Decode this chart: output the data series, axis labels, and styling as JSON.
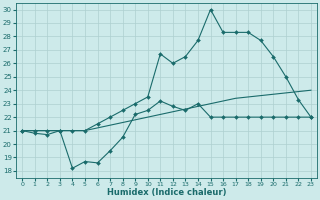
{
  "xlabel": "Humidex (Indice chaleur)",
  "background_color": "#cdeaea",
  "grid_color": "#aed0d0",
  "line_color": "#1a6b6b",
  "x_ticks": [
    0,
    1,
    2,
    3,
    4,
    5,
    6,
    7,
    8,
    9,
    10,
    11,
    12,
    13,
    14,
    15,
    16,
    17,
    18,
    19,
    20,
    21,
    22,
    23
  ],
  "y_ticks": [
    18,
    19,
    20,
    21,
    22,
    23,
    24,
    25,
    26,
    27,
    28,
    29,
    30
  ],
  "ylim": [
    17.5,
    30.5
  ],
  "xlim": [
    -0.5,
    23.5
  ],
  "series1_x": [
    0,
    1,
    2,
    3,
    4,
    5,
    6,
    7,
    8,
    9,
    10,
    11,
    12,
    13,
    14,
    15,
    16,
    17,
    18,
    19,
    20,
    21,
    22,
    23
  ],
  "series1_y": [
    21.0,
    20.8,
    20.7,
    21.0,
    18.2,
    18.7,
    18.6,
    19.5,
    20.5,
    22.2,
    22.5,
    23.2,
    22.8,
    22.5,
    23.0,
    22.0,
    22.0,
    22.0,
    22.0,
    22.0,
    22.0,
    22.0,
    22.0,
    22.0
  ],
  "series2_x": [
    0,
    1,
    2,
    3,
    4,
    5,
    6,
    7,
    8,
    9,
    10,
    11,
    12,
    13,
    14,
    15,
    16,
    17,
    18,
    19,
    20,
    21,
    22,
    23
  ],
  "series2_y": [
    21.0,
    21.0,
    21.0,
    21.0,
    21.0,
    21.0,
    21.2,
    21.4,
    21.6,
    21.8,
    22.0,
    22.2,
    22.4,
    22.6,
    22.8,
    23.0,
    23.2,
    23.4,
    23.5,
    23.6,
    23.7,
    23.8,
    23.9,
    24.0
  ],
  "series3_x": [
    0,
    1,
    2,
    3,
    4,
    5,
    6,
    7,
    8,
    9,
    10,
    11,
    12,
    13,
    14,
    15,
    16,
    17,
    18,
    19,
    20,
    21,
    22,
    23
  ],
  "series3_y": [
    21.0,
    21.0,
    21.0,
    21.0,
    21.0,
    21.0,
    21.5,
    22.0,
    22.5,
    23.0,
    23.5,
    26.7,
    26.0,
    26.5,
    27.7,
    30.0,
    28.3,
    28.3,
    28.3,
    27.7,
    26.5,
    25.0,
    23.3,
    22.0
  ]
}
